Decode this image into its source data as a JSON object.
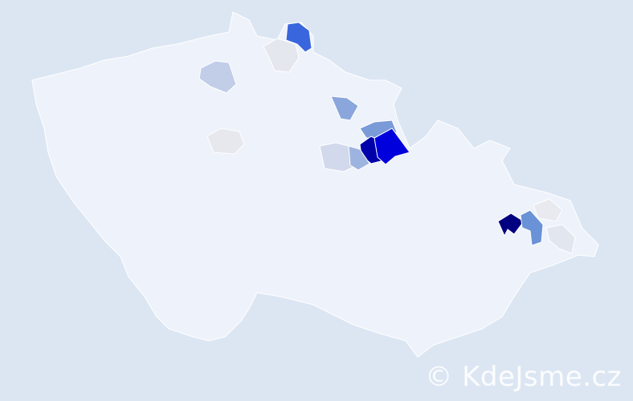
{
  "map": {
    "country_fill": "#eef2fa",
    "background": "#dce6f3",
    "districts": [
      {
        "name": "north-1",
        "color": "#3a66dd"
      },
      {
        "name": "north-2",
        "color": "#e4e7ee"
      },
      {
        "name": "north-west",
        "color": "#c2cee8"
      },
      {
        "name": "central",
        "color": "#e6e8ee"
      },
      {
        "name": "east-1",
        "color": "#8aa6dc"
      },
      {
        "name": "east-2",
        "color": "#7a9ad8"
      },
      {
        "name": "east-3",
        "color": "#0000aa"
      },
      {
        "name": "east-4",
        "color": "#0000dd"
      },
      {
        "name": "east-5",
        "color": "#d2d9ec"
      },
      {
        "name": "east-6",
        "color": "#9eb4e0"
      },
      {
        "name": "moravia-1",
        "color": "#000080"
      },
      {
        "name": "moravia-2",
        "color": "#6a92d6"
      },
      {
        "name": "moravia-3",
        "color": "#e8eaf0"
      },
      {
        "name": "moravia-4",
        "color": "#e2e6ef"
      }
    ]
  },
  "watermark": "© KdeJsme.cz"
}
